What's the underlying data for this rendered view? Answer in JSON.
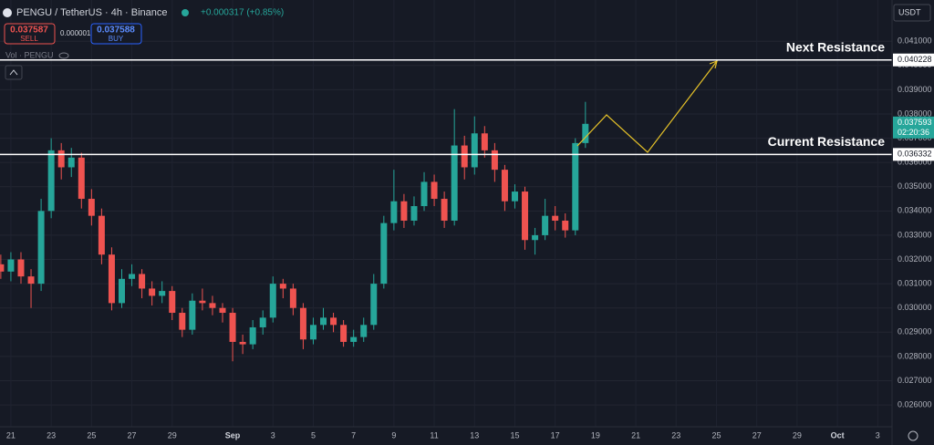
{
  "chart_data": {
    "type": "candlestick",
    "symbol": "PENGU / TetherUS · 4h · Binance",
    "change": "+0.000317 (+0.85%)",
    "sell_price": 0.037587,
    "sell_label": "SELL",
    "spread": 1e-06,
    "buy_price": 0.037588,
    "buy_label": "BUY",
    "volume_label": "Vol · PENGU",
    "currency": "USDT",
    "last_price": 0.037593,
    "countdown": "02:20:36",
    "up_color": "#26a69a",
    "down_color": "#ef5350",
    "x": [
      -0.5,
      0,
      0.5,
      1,
      1.5,
      2,
      2.5,
      3,
      3.5,
      4,
      4.5,
      5,
      5.5,
      6,
      6.5,
      7,
      7.5,
      8,
      8.5,
      9,
      9.5,
      10,
      10.5,
      11,
      11.5,
      12,
      12.5,
      13,
      13.5,
      14,
      14.5,
      15,
      15.5,
      16,
      16.5,
      17,
      17.5,
      18,
      18.5,
      19,
      19.5,
      20,
      20.5,
      21,
      21.5,
      22,
      22.5,
      23,
      23.5,
      24,
      24.5,
      25,
      25.5,
      26,
      26.5,
      27,
      27.5,
      28,
      28.5
    ],
    "ohlc": [
      [
        0.0318,
        0.0322,
        0.0312,
        0.0315
      ],
      [
        0.0315,
        0.0323,
        0.0311,
        0.032
      ],
      [
        0.032,
        0.0323,
        0.031,
        0.0313
      ],
      [
        0.0313,
        0.0316,
        0.03,
        0.031
      ],
      [
        0.031,
        0.0345,
        0.0307,
        0.034
      ],
      [
        0.034,
        0.037,
        0.0337,
        0.0365
      ],
      [
        0.0365,
        0.0368,
        0.0353,
        0.0358
      ],
      [
        0.0358,
        0.0366,
        0.0354,
        0.0362
      ],
      [
        0.0362,
        0.0364,
        0.0341,
        0.0345
      ],
      [
        0.0345,
        0.0349,
        0.0334,
        0.0338
      ],
      [
        0.0338,
        0.0341,
        0.0318,
        0.0322
      ],
      [
        0.0322,
        0.0325,
        0.0299,
        0.0302
      ],
      [
        0.0302,
        0.0316,
        0.03,
        0.0312
      ],
      [
        0.0312,
        0.0318,
        0.0309,
        0.0314
      ],
      [
        0.0314,
        0.0316,
        0.0304,
        0.0308
      ],
      [
        0.0308,
        0.0311,
        0.0301,
        0.0305
      ],
      [
        0.0305,
        0.0311,
        0.0302,
        0.0307
      ],
      [
        0.0307,
        0.0309,
        0.0295,
        0.0298
      ],
      [
        0.0298,
        0.03,
        0.0288,
        0.0291
      ],
      [
        0.0291,
        0.0306,
        0.0289,
        0.0303
      ],
      [
        0.0303,
        0.0308,
        0.0299,
        0.0302
      ],
      [
        0.0302,
        0.0305,
        0.0297,
        0.03
      ],
      [
        0.03,
        0.0302,
        0.0294,
        0.0298
      ],
      [
        0.0298,
        0.03,
        0.0278,
        0.0286
      ],
      [
        0.0286,
        0.0289,
        0.0281,
        0.0285
      ],
      [
        0.0285,
        0.0295,
        0.0283,
        0.0292
      ],
      [
        0.0292,
        0.0299,
        0.0289,
        0.0296
      ],
      [
        0.0296,
        0.0313,
        0.0294,
        0.031
      ],
      [
        0.031,
        0.0312,
        0.0304,
        0.0308
      ],
      [
        0.0308,
        0.031,
        0.0297,
        0.03
      ],
      [
        0.03,
        0.0302,
        0.0283,
        0.0287
      ],
      [
        0.0287,
        0.0296,
        0.0285,
        0.0293
      ],
      [
        0.0293,
        0.03,
        0.0291,
        0.0296
      ],
      [
        0.0296,
        0.0298,
        0.029,
        0.0293
      ],
      [
        0.0293,
        0.0295,
        0.0284,
        0.0286
      ],
      [
        0.0286,
        0.0291,
        0.0284,
        0.0288
      ],
      [
        0.0288,
        0.0296,
        0.0286,
        0.0293
      ],
      [
        0.0293,
        0.0314,
        0.0291,
        0.031
      ],
      [
        0.031,
        0.0338,
        0.0308,
        0.0335
      ],
      [
        0.0335,
        0.0357,
        0.0332,
        0.0344
      ],
      [
        0.0344,
        0.0347,
        0.0333,
        0.0336
      ],
      [
        0.0336,
        0.0346,
        0.0334,
        0.0342
      ],
      [
        0.0342,
        0.0356,
        0.034,
        0.0352
      ],
      [
        0.0352,
        0.0355,
        0.0342,
        0.0345
      ],
      [
        0.0345,
        0.0348,
        0.0333,
        0.0336
      ],
      [
        0.0336,
        0.0382,
        0.0334,
        0.0367
      ],
      [
        0.0367,
        0.0371,
        0.0353,
        0.0358
      ],
      [
        0.0358,
        0.0379,
        0.0355,
        0.0372
      ],
      [
        0.0372,
        0.0375,
        0.0362,
        0.0365
      ],
      [
        0.0365,
        0.0368,
        0.0352,
        0.0357
      ],
      [
        0.0357,
        0.0359,
        0.034,
        0.0344
      ],
      [
        0.0344,
        0.0351,
        0.0341,
        0.0348
      ],
      [
        0.0348,
        0.035,
        0.0324,
        0.0328
      ],
      [
        0.0328,
        0.0333,
        0.0322,
        0.033
      ],
      [
        0.033,
        0.0345,
        0.0328,
        0.0338
      ],
      [
        0.0338,
        0.0342,
        0.0332,
        0.0336
      ],
      [
        0.0336,
        0.0339,
        0.0329,
        0.0332
      ],
      [
        0.0332,
        0.037,
        0.033,
        0.0368
      ],
      [
        0.0368,
        0.0385,
        0.0366,
        0.037593
      ]
    ],
    "levels": [
      {
        "label": "Next Resistance",
        "value": 0.040228
      },
      {
        "label": "Current Resistance",
        "value": 0.036332
      }
    ],
    "xlim": [
      -0.54,
      43.71
    ],
    "ylim": [
      0.0251,
      0.0427
    ],
    "xticks": [
      {
        "value": 0,
        "label": "21"
      },
      {
        "value": 2,
        "label": "23"
      },
      {
        "value": 4,
        "label": "25"
      },
      {
        "value": 6,
        "label": "27"
      },
      {
        "value": 8,
        "label": "29"
      },
      {
        "value": 11,
        "label": "Sep"
      },
      {
        "value": 13,
        "label": "3"
      },
      {
        "value": 15,
        "label": "5"
      },
      {
        "value": 17,
        "label": "7"
      },
      {
        "value": 19,
        "label": "9"
      },
      {
        "value": 21,
        "label": "11"
      },
      {
        "value": 23,
        "label": "13"
      },
      {
        "value": 25,
        "label": "15"
      },
      {
        "value": 27,
        "label": "17"
      },
      {
        "value": 29,
        "label": "19"
      },
      {
        "value": 31,
        "label": "21"
      },
      {
        "value": 33,
        "label": "23"
      },
      {
        "value": 35,
        "label": "25"
      },
      {
        "value": 37,
        "label": "27"
      },
      {
        "value": 39,
        "label": "29"
      },
      {
        "value": 41,
        "label": "Oct"
      },
      {
        "value": 43,
        "label": "3"
      }
    ],
    "yticks": [
      {
        "value": 0.026,
        "label": "0.026000"
      },
      {
        "value": 0.027,
        "label": "0.027000"
      },
      {
        "value": 0.028,
        "label": "0.028000"
      },
      {
        "value": 0.029,
        "label": "0.029000"
      },
      {
        "value": 0.03,
        "label": "0.030000"
      },
      {
        "value": 0.031,
        "label": "0.031000"
      },
      {
        "value": 0.032,
        "label": "0.032000"
      },
      {
        "value": 0.033,
        "label": "0.033000"
      },
      {
        "value": 0.034,
        "label": "0.034000"
      },
      {
        "value": 0.035,
        "label": "0.035000"
      },
      {
        "value": 0.036,
        "label": "0.036000"
      },
      {
        "value": 0.037,
        "label": "0.037000"
      },
      {
        "value": 0.038,
        "label": "0.038000"
      },
      {
        "value": 0.039,
        "label": "0.039000"
      },
      {
        "value": 0.04,
        "label": "0.040000"
      },
      {
        "value": 0.041,
        "label": "0.041000"
      }
    ],
    "grid": true
  }
}
